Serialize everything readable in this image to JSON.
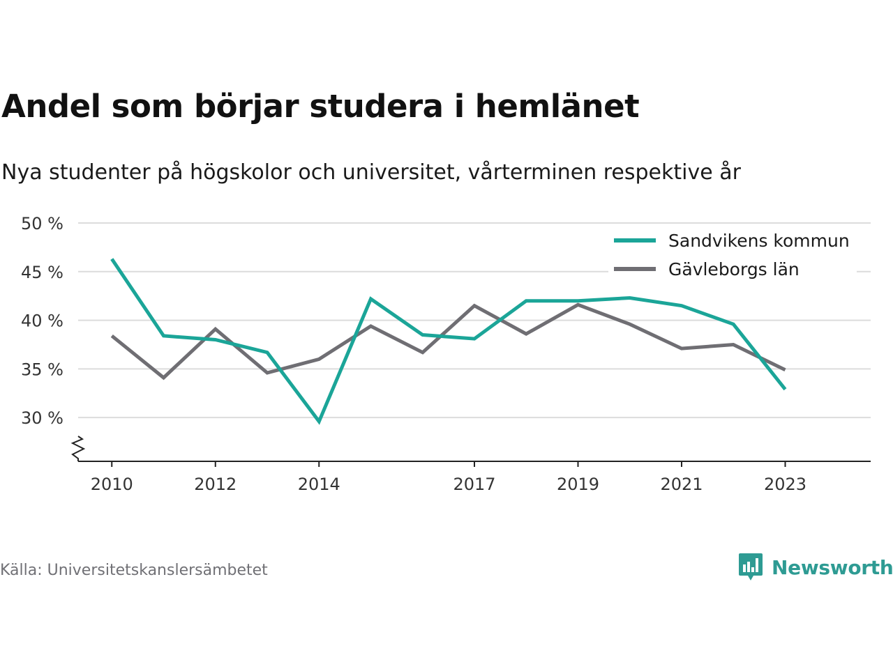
{
  "title": "Andel som börjar studera i hemlänet",
  "subtitle": "Nya studenter på högskolor och universitet, vårterminen respektive år",
  "source": "Källa: Universitetskanslersämbetet",
  "brand": {
    "name": "Newsworthy",
    "logo_icon": "newsworthy-bar-chart-bubble-icon",
    "color": "#2e9b93"
  },
  "chart_data": {
    "type": "line",
    "x": [
      2010,
      2011,
      2012,
      2013,
      2014,
      2015,
      2016,
      2017,
      2018,
      2019,
      2020,
      2021,
      2022,
      2023
    ],
    "x_tick_labels": [
      "2010",
      "2012",
      "2014",
      "2017",
      "2019",
      "2021",
      "2023"
    ],
    "x_ticks": [
      2010,
      2012,
      2014,
      2017,
      2019,
      2021,
      2023
    ],
    "y_ticks": [
      30,
      35,
      40,
      45,
      50
    ],
    "y_tick_labels": [
      "30 %",
      "35 %",
      "40 %",
      "45 %",
      "50 %"
    ],
    "ylim": [
      25.5,
      50
    ],
    "xlim": [
      2009.35,
      2024.65
    ],
    "grid": true,
    "y_axis_break": true,
    "legend_position": "top-right",
    "series": [
      {
        "name": "Sandvikens kommun",
        "color": "#1ba598",
        "values": [
          46.3,
          38.4,
          38.0,
          36.7,
          29.6,
          42.2,
          38.5,
          38.1,
          42.0,
          42.0,
          42.3,
          41.5,
          39.6,
          32.9
        ]
      },
      {
        "name": "Gävleborgs län",
        "color": "#6f6e73",
        "values": [
          38.4,
          34.1,
          39.1,
          34.6,
          36.0,
          39.4,
          36.7,
          41.5,
          38.6,
          41.6,
          39.6,
          37.1,
          37.5,
          34.9
        ]
      }
    ]
  }
}
